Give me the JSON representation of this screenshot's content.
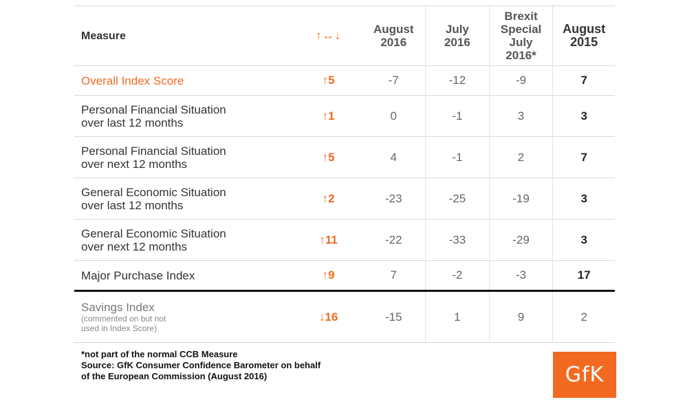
{
  "header": {
    "measure": "Measure",
    "change_symbol": "↑↔↓",
    "col_aug16": [
      "August",
      "2016"
    ],
    "col_jul16": [
      "July",
      "2016"
    ],
    "col_brexit": [
      "Brexit",
      "Special",
      "July",
      "2016*"
    ],
    "col_aug15": [
      "August",
      "2015"
    ]
  },
  "rows": [
    {
      "label": [
        "Overall Index Score"
      ],
      "change": "↑5",
      "aug16": "-7",
      "jul16": "-12",
      "brexit": "-9",
      "aug15": "7"
    },
    {
      "label": [
        "Personal Financial Situation",
        "over last 12 months"
      ],
      "change": "↑1",
      "aug16": "0",
      "jul16": "-1",
      "brexit": "3",
      "aug15": "3"
    },
    {
      "label": [
        "Personal Financial Situation",
        "over next 12 months"
      ],
      "change": "↑5",
      "aug16": "4",
      "jul16": "-1",
      "brexit": "2",
      "aug15": "7"
    },
    {
      "label": [
        "General Economic Situation",
        "over last 12 months"
      ],
      "change": "↑2",
      "aug16": "-23",
      "jul16": "-25",
      "brexit": "-19",
      "aug15": "3"
    },
    {
      "label": [
        "General Economic Situation",
        "over next 12 months"
      ],
      "change": "↑11",
      "aug16": "-22",
      "jul16": "-33",
      "brexit": "-29",
      "aug15": "3"
    },
    {
      "label": [
        "Major Purchase Index"
      ],
      "change": "↑9",
      "aug16": "7",
      "jul16": "-2",
      "brexit": "-3",
      "aug15": "17"
    }
  ],
  "savings": {
    "label": "Savings Index",
    "sub": [
      "(commented on but not",
      "used in Index Score)"
    ],
    "change": "↓16",
    "aug16": "-15",
    "jul16": "1",
    "brexit": "9",
    "aug15": "2"
  },
  "footnote": [
    "*not part of the normal CCB Measure",
    "Source: GfK Consumer Confidence Barometer on behalf",
    "of the European Commission (August 2016)"
  ],
  "logo": "GfK",
  "colors": {
    "accent": "#f26a21",
    "separator": "#111111"
  }
}
